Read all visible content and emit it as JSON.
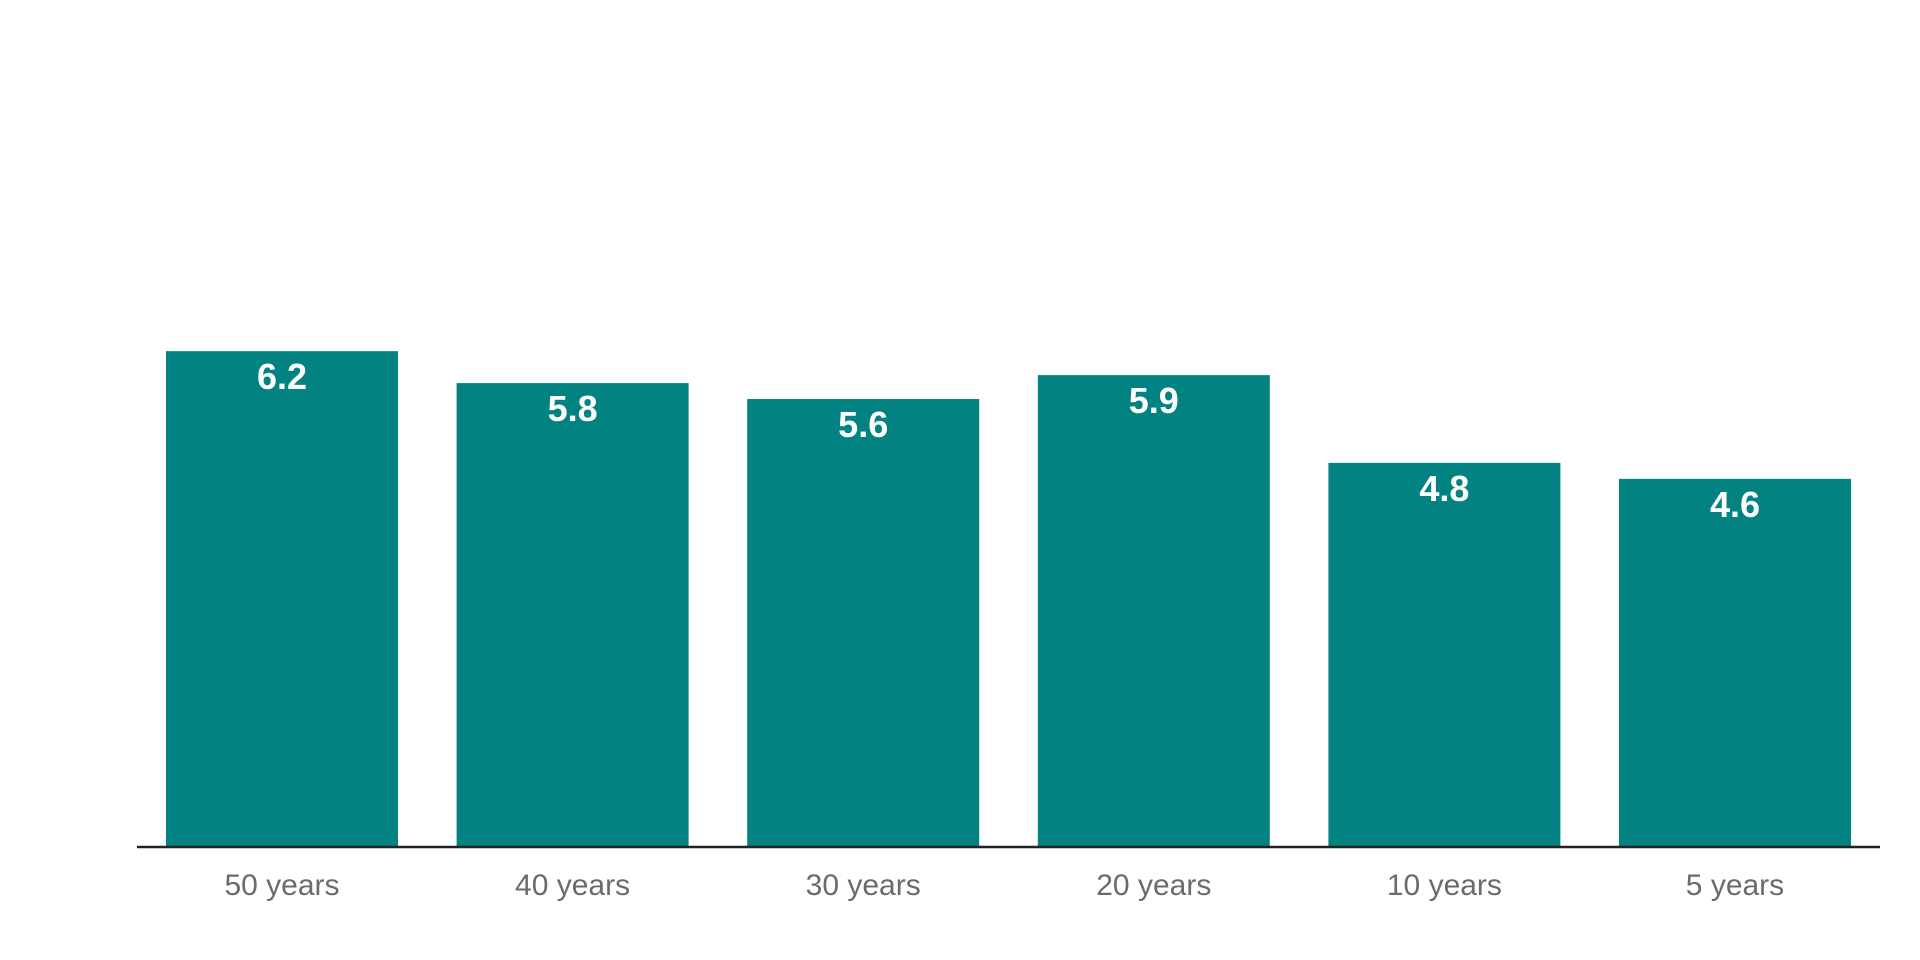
{
  "chart_data": {
    "type": "bar",
    "categories": [
      "50 years",
      "40 years",
      "30 years",
      "20 years",
      "10 years",
      "5 years"
    ],
    "values": [
      6.2,
      5.8,
      5.6,
      5.9,
      4.8,
      4.6
    ],
    "data_labels": [
      "6.2",
      "5.8",
      "5.6",
      "5.9",
      "4.8",
      "4.6"
    ],
    "title": "",
    "xlabel": "",
    "ylabel": "",
    "ylim": [
      0,
      10.6
    ],
    "grid": false,
    "legend": "none",
    "colors": {
      "bar": "#038282",
      "axis": "#222222",
      "tick_label": "#6b6b6b",
      "data_label": "#ffffff"
    }
  }
}
